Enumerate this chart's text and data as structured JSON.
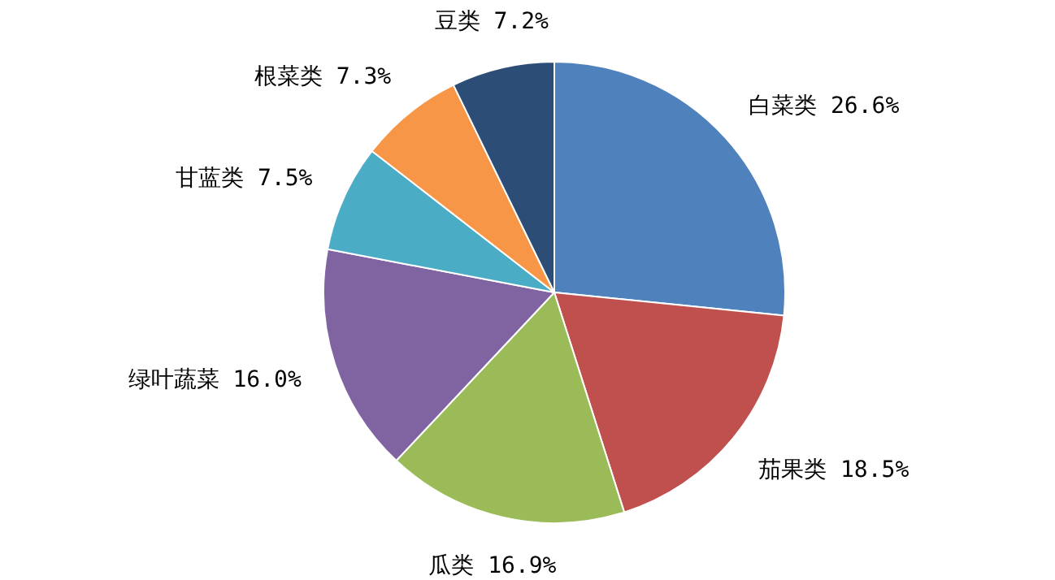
{
  "chart_data": {
    "type": "pie",
    "categories": [
      "白菜类",
      "茄果类",
      "瓜类",
      "绿叶蔬菜",
      "甘蓝类",
      "根菜类",
      "豆类"
    ],
    "values": [
      26.6,
      18.5,
      16.9,
      16.0,
      7.5,
      7.3,
      7.2
    ],
    "value_labels": [
      "26.6%",
      "18.5%",
      "16.9%",
      "16.0%",
      "7.5%",
      "7.3%",
      "7.2%"
    ],
    "colors": [
      "#4f81bd",
      "#c0504d",
      "#9bbb59",
      "#8064a2",
      "#4bacc6",
      "#f79646",
      "#2c4d75"
    ]
  }
}
